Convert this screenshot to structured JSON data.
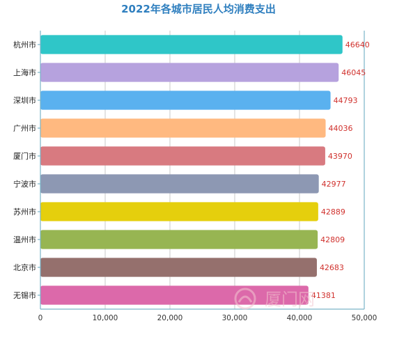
{
  "chart_data": {
    "type": "bar",
    "orientation": "horizontal",
    "title": "2022年各城市居民人均消费支出",
    "xlabel": "",
    "ylabel": "",
    "categories": [
      "杭州市",
      "上海市",
      "深圳市",
      "广州市",
      "厦门市",
      "宁波市",
      "苏州市",
      "温州市",
      "北京市",
      "无锡市"
    ],
    "values": [
      46640,
      46045,
      44793,
      44036,
      43970,
      42977,
      42889,
      42809,
      42683,
      41381
    ],
    "colors": [
      "#2fc6c8",
      "#b6a2de",
      "#5ab1ef",
      "#ffb980",
      "#d87a80",
      "#8d98b3",
      "#e5cf0d",
      "#97b552",
      "#95706d",
      "#dc69aa"
    ],
    "xlim": [
      0,
      50000
    ],
    "xticks": [
      0,
      10000,
      20000,
      30000,
      40000,
      50000
    ],
    "xtick_labels": [
      "0",
      "10,000",
      "20,000",
      "30,000",
      "40,000",
      "50,000"
    ],
    "data_labels": [
      "46640",
      "46045",
      "44793",
      "44036",
      "43970",
      "42977",
      "42889",
      "42809",
      "42683",
      "41381"
    ],
    "grid": true,
    "legend": "none"
  },
  "watermark": {
    "text": "厦门网",
    "color": "#f3c7cf"
  }
}
